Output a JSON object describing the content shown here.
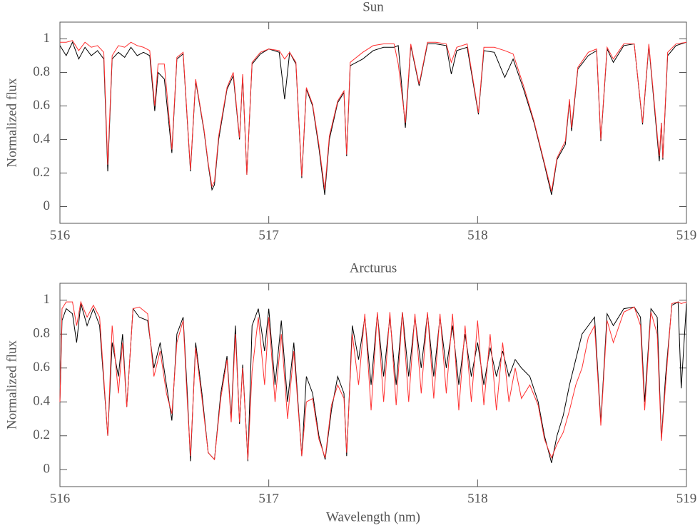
{
  "chart_data": [
    {
      "type": "line",
      "title": "Sun",
      "ylabel": "Normalized flux",
      "xlim": [
        516,
        519
      ],
      "ylim": [
        -0.1,
        1.1
      ],
      "xticks": [
        516,
        517,
        518,
        519
      ],
      "yticks": [
        0,
        0.2,
        0.4,
        0.6,
        0.8,
        1
      ],
      "x": [
        516.0,
        516.03,
        516.06,
        516.09,
        516.12,
        516.15,
        516.18,
        516.21,
        516.229,
        516.25,
        516.28,
        516.31,
        516.34,
        516.37,
        516.4,
        516.43,
        516.454,
        516.47,
        516.5,
        516.536,
        516.56,
        516.59,
        516.625,
        516.65,
        516.69,
        516.71,
        516.728,
        516.74,
        516.76,
        516.8,
        516.83,
        516.86,
        516.875,
        516.895,
        516.92,
        516.96,
        517.0,
        517.05,
        517.076,
        517.1,
        517.13,
        517.158,
        517.18,
        517.21,
        517.24,
        517.268,
        517.29,
        517.33,
        517.36,
        517.373,
        517.39,
        517.45,
        517.5,
        517.55,
        517.6,
        517.62,
        517.654,
        517.68,
        517.72,
        517.76,
        517.8,
        517.85,
        517.874,
        517.9,
        517.95,
        518.004,
        518.03,
        518.08,
        518.13,
        518.17,
        518.22,
        518.27,
        518.32,
        518.354,
        518.38,
        518.42,
        518.44,
        518.45,
        518.48,
        518.53,
        518.57,
        518.59,
        518.62,
        518.65,
        518.7,
        518.75,
        518.79,
        518.82,
        518.87,
        518.88,
        518.887,
        518.91,
        518.95,
        519.0
      ],
      "series": [
        {
          "color": "#000000",
          "values": [
            0.96,
            0.9,
            0.98,
            0.88,
            0.95,
            0.9,
            0.93,
            0.88,
            0.21,
            0.88,
            0.92,
            0.89,
            0.95,
            0.9,
            0.92,
            0.9,
            0.57,
            0.8,
            0.76,
            0.32,
            0.88,
            0.91,
            0.21,
            0.75,
            0.45,
            0.25,
            0.1,
            0.13,
            0.4,
            0.7,
            0.78,
            0.4,
            0.78,
            0.19,
            0.85,
            0.91,
            0.94,
            0.92,
            0.64,
            0.92,
            0.85,
            0.17,
            0.7,
            0.6,
            0.35,
            0.07,
            0.4,
            0.62,
            0.68,
            0.3,
            0.84,
            0.88,
            0.93,
            0.95,
            0.95,
            0.96,
            0.47,
            0.96,
            0.72,
            0.97,
            0.97,
            0.96,
            0.79,
            0.93,
            0.95,
            0.55,
            0.93,
            0.92,
            0.77,
            0.88,
            0.7,
            0.5,
            0.25,
            0.07,
            0.28,
            0.37,
            0.63,
            0.45,
            0.82,
            0.9,
            0.93,
            0.39,
            0.94,
            0.86,
            0.96,
            0.97,
            0.49,
            0.96,
            0.27,
            0.5,
            0.28,
            0.9,
            0.96,
            0.98
          ]
        },
        {
          "color": "#ff3030",
          "values": [
            0.98,
            0.98,
            0.99,
            0.93,
            0.98,
            0.95,
            0.96,
            0.92,
            0.25,
            0.9,
            0.96,
            0.95,
            0.98,
            0.96,
            0.95,
            0.93,
            0.6,
            0.85,
            0.85,
            0.34,
            0.89,
            0.92,
            0.22,
            0.76,
            0.46,
            0.26,
            0.12,
            0.15,
            0.42,
            0.71,
            0.8,
            0.41,
            0.79,
            0.19,
            0.86,
            0.92,
            0.94,
            0.93,
            0.88,
            0.92,
            0.86,
            0.18,
            0.71,
            0.61,
            0.37,
            0.1,
            0.42,
            0.63,
            0.69,
            0.31,
            0.86,
            0.92,
            0.96,
            0.97,
            0.97,
            0.85,
            0.5,
            0.97,
            0.73,
            0.98,
            0.98,
            0.97,
            0.86,
            0.95,
            0.97,
            0.56,
            0.95,
            0.95,
            0.93,
            0.91,
            0.72,
            0.51,
            0.26,
            0.09,
            0.29,
            0.39,
            0.64,
            0.47,
            0.83,
            0.92,
            0.94,
            0.4,
            0.95,
            0.88,
            0.97,
            0.97,
            0.5,
            0.97,
            0.3,
            0.5,
            0.29,
            0.92,
            0.97,
            0.98
          ]
        }
      ]
    },
    {
      "type": "line",
      "title": "Arcturus",
      "ylabel": "Normalized flux",
      "xlabel": "Wavelength (nm)",
      "xlim": [
        516,
        519
      ],
      "ylim": [
        -0.1,
        1.1
      ],
      "xticks": [
        516,
        517,
        518,
        519
      ],
      "yticks": [
        0,
        0.2,
        0.4,
        0.6,
        0.8,
        1
      ],
      "x": [
        516.0,
        516.01,
        516.03,
        516.06,
        516.08,
        516.1,
        516.13,
        516.16,
        516.19,
        516.229,
        516.25,
        516.28,
        516.3,
        516.32,
        516.35,
        516.38,
        516.42,
        516.45,
        516.48,
        516.51,
        516.536,
        516.56,
        516.59,
        516.61,
        516.625,
        516.65,
        516.68,
        516.71,
        516.74,
        516.77,
        516.8,
        516.82,
        516.84,
        516.86,
        516.875,
        516.9,
        516.92,
        516.95,
        516.98,
        517.0,
        517.03,
        517.06,
        517.09,
        517.12,
        517.158,
        517.18,
        517.21,
        517.24,
        517.27,
        517.3,
        517.33,
        517.36,
        517.373,
        517.4,
        517.43,
        517.46,
        517.49,
        517.52,
        517.55,
        517.58,
        517.61,
        517.64,
        517.67,
        517.7,
        517.73,
        517.76,
        517.79,
        517.82,
        517.85,
        517.88,
        517.91,
        517.94,
        517.97,
        518.0,
        518.03,
        518.06,
        518.09,
        518.12,
        518.15,
        518.18,
        518.21,
        518.25,
        518.29,
        518.32,
        518.354,
        518.38,
        518.41,
        518.44,
        518.47,
        518.5,
        518.53,
        518.56,
        518.59,
        518.62,
        518.65,
        518.7,
        518.75,
        518.78,
        518.8,
        518.83,
        518.86,
        518.88,
        518.9,
        518.93,
        518.96,
        518.975,
        519.0
      ],
      "series": [
        {
          "color": "#000000",
          "values": [
            0.4,
            0.88,
            0.95,
            0.92,
            0.75,
            0.98,
            0.85,
            0.95,
            0.85,
            0.2,
            0.75,
            0.55,
            0.8,
            0.37,
            0.95,
            0.9,
            0.88,
            0.6,
            0.75,
            0.5,
            0.29,
            0.8,
            0.9,
            0.45,
            0.05,
            0.75,
            0.45,
            0.1,
            0.06,
            0.45,
            0.67,
            0.3,
            0.85,
            0.27,
            0.62,
            0.05,
            0.85,
            0.95,
            0.7,
            0.95,
            0.5,
            0.88,
            0.4,
            0.75,
            0.08,
            0.55,
            0.45,
            0.2,
            0.06,
            0.35,
            0.55,
            0.45,
            0.08,
            0.85,
            0.65,
            0.9,
            0.5,
            0.92,
            0.55,
            0.9,
            0.5,
            0.93,
            0.55,
            0.9,
            0.6,
            0.92,
            0.55,
            0.9,
            0.6,
            0.85,
            0.5,
            0.8,
            0.55,
            0.75,
            0.5,
            0.72,
            0.55,
            0.7,
            0.55,
            0.65,
            0.6,
            0.55,
            0.4,
            0.2,
            0.04,
            0.2,
            0.32,
            0.5,
            0.65,
            0.8,
            0.85,
            0.9,
            0.28,
            0.92,
            0.85,
            0.95,
            0.96,
            0.9,
            0.4,
            0.95,
            0.9,
            0.18,
            0.55,
            0.97,
            0.99,
            0.48,
            0.98
          ]
        },
        {
          "color": "#ff3030",
          "values": [
            0.4,
            0.95,
            0.99,
            0.99,
            0.85,
            0.99,
            0.9,
            0.97,
            0.9,
            0.2,
            0.85,
            0.45,
            0.75,
            0.37,
            0.95,
            0.96,
            0.92,
            0.55,
            0.7,
            0.45,
            0.33,
            0.75,
            0.88,
            0.4,
            0.08,
            0.72,
            0.42,
            0.1,
            0.06,
            0.42,
            0.65,
            0.28,
            0.8,
            0.28,
            0.6,
            0.06,
            0.58,
            0.9,
            0.5,
            0.9,
            0.4,
            0.8,
            0.3,
            0.7,
            0.08,
            0.4,
            0.42,
            0.18,
            0.07,
            0.38,
            0.5,
            0.42,
            0.1,
            0.8,
            0.5,
            0.92,
            0.35,
            0.93,
            0.4,
            0.93,
            0.38,
            0.93,
            0.4,
            0.92,
            0.45,
            0.93,
            0.42,
            0.92,
            0.45,
            0.92,
            0.35,
            0.85,
            0.4,
            0.88,
            0.38,
            0.8,
            0.35,
            0.75,
            0.4,
            0.6,
            0.42,
            0.5,
            0.38,
            0.18,
            0.07,
            0.15,
            0.22,
            0.35,
            0.5,
            0.6,
            0.78,
            0.85,
            0.26,
            0.88,
            0.75,
            0.93,
            0.96,
            0.85,
            0.35,
            0.93,
            0.8,
            0.17,
            0.5,
            0.98,
            0.99,
            0.98,
            0.99
          ]
        }
      ]
    }
  ]
}
